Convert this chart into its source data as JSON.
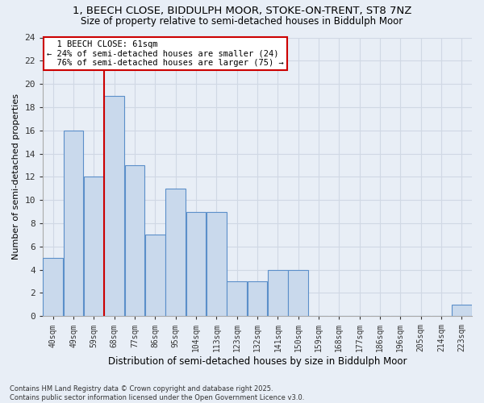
{
  "title1": "1, BEECH CLOSE, BIDDULPH MOOR, STOKE-ON-TRENT, ST8 7NZ",
  "title2": "Size of property relative to semi-detached houses in Biddulph Moor",
  "xlabel": "Distribution of semi-detached houses by size in Biddulph Moor",
  "ylabel": "Number of semi-detached properties",
  "categories": [
    "40sqm",
    "49sqm",
    "59sqm",
    "68sqm",
    "77sqm",
    "86sqm",
    "95sqm",
    "104sqm",
    "113sqm",
    "123sqm",
    "132sqm",
    "141sqm",
    "150sqm",
    "159sqm",
    "168sqm",
    "177sqm",
    "186sqm",
    "196sqm",
    "205sqm",
    "214sqm",
    "223sqm"
  ],
  "values": [
    5,
    16,
    12,
    19,
    13,
    7,
    11,
    9,
    9,
    3,
    3,
    4,
    4,
    0,
    0,
    0,
    0,
    0,
    0,
    0,
    1
  ],
  "bar_color": "#c9d9ec",
  "bar_edge_color": "#5b8fc9",
  "property_label": "1 BEECH CLOSE: 61sqm",
  "pct_smaller": 24,
  "count_smaller": 24,
  "pct_larger": 76,
  "count_larger": 75,
  "red_line_color": "#cc0000",
  "annotation_box_color": "#cc0000",
  "grid_color": "#d0d8e4",
  "background_color": "#e8eef6",
  "ylim": [
    0,
    24
  ],
  "yticks": [
    0,
    2,
    4,
    6,
    8,
    10,
    12,
    14,
    16,
    18,
    20,
    22,
    24
  ],
  "footer": "Contains HM Land Registry data © Crown copyright and database right 2025.\nContains public sector information licensed under the Open Government Licence v3.0."
}
